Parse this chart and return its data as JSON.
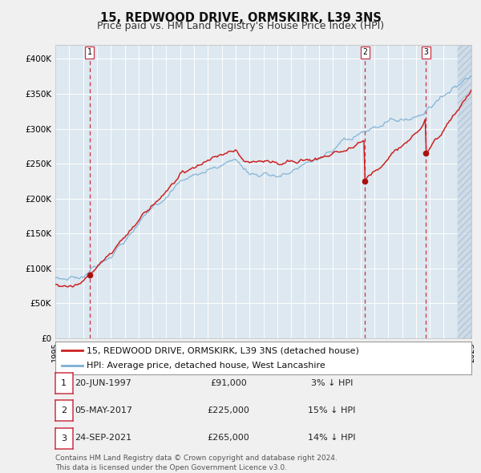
{
  "title": "15, REDWOOD DRIVE, ORMSKIRK, L39 3NS",
  "subtitle": "Price paid vs. HM Land Registry's House Price Index (HPI)",
  "ylim": [
    0,
    420000
  ],
  "yticks": [
    0,
    50000,
    100000,
    150000,
    200000,
    250000,
    300000,
    350000,
    400000
  ],
  "ytick_labels": [
    "£0",
    "£50K",
    "£100K",
    "£150K",
    "£200K",
    "£250K",
    "£300K",
    "£350K",
    "£400K"
  ],
  "hpi_color": "#7bafd4",
  "price_color": "#cc2222",
  "sale_marker_color": "#aa1111",
  "vline_color": "#cc3344",
  "plot_bg_color": "#dde8f0",
  "fig_bg_color": "#f0f0f0",
  "legend_label_price": "15, REDWOOD DRIVE, ORMSKIRK, L39 3NS (detached house)",
  "legend_label_hpi": "HPI: Average price, detached house, West Lancashire",
  "sales": [
    {
      "num": 1,
      "date_x": 1997.47,
      "price": 91000,
      "label_date": "20-JUN-1997",
      "label_price": "£91,000",
      "label_pct": "3% ↓ HPI"
    },
    {
      "num": 2,
      "date_x": 2017.34,
      "price": 225000,
      "label_date": "05-MAY-2017",
      "label_price": "£225,000",
      "label_pct": "15% ↓ HPI"
    },
    {
      "num": 3,
      "date_x": 2021.73,
      "price": 265000,
      "label_date": "24-SEP-2021",
      "label_price": "£265,000",
      "label_pct": "14% ↓ HPI"
    }
  ],
  "footnote": "Contains HM Land Registry data © Crown copyright and database right 2024.\nThis data is licensed under the Open Government Licence v3.0.",
  "title_fontsize": 10.5,
  "subtitle_fontsize": 9,
  "axis_fontsize": 7.5,
  "legend_fontsize": 8,
  "table_fontsize": 8,
  "footnote_fontsize": 6.5,
  "xmin": 1995,
  "xmax": 2025,
  "hatch_start": 2024.0
}
